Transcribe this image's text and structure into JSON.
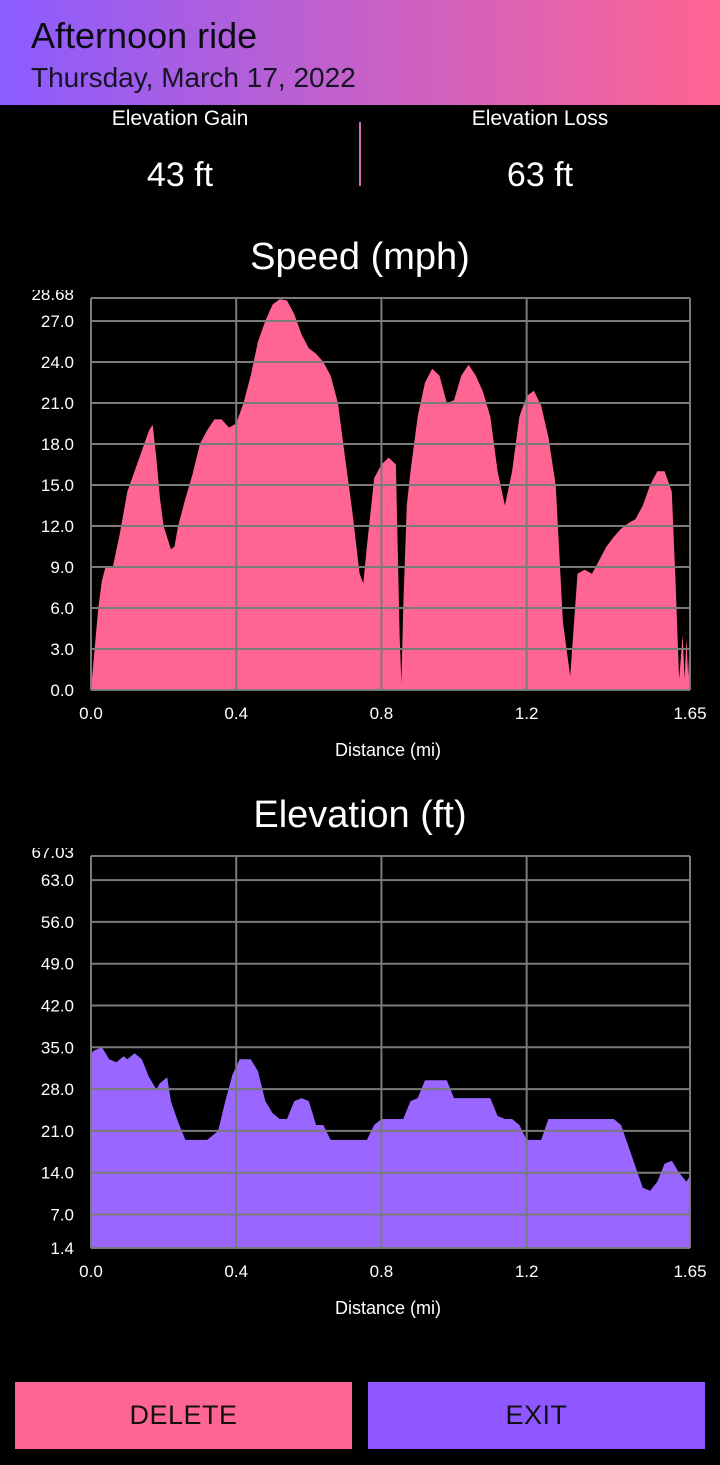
{
  "header": {
    "title": "Afternoon ride",
    "date": "Thursday, March 17, 2022"
  },
  "stats": {
    "gain_label": "Elevation Gain",
    "gain_value": "43 ft",
    "loss_label": "Elevation Loss",
    "loss_value": "63 ft"
  },
  "buttons": {
    "delete_label": "DELETE",
    "exit_label": "EXIT"
  },
  "colors": {
    "speed_fill": "#ff6592",
    "elevation_fill": "#9966ff",
    "grid": "#7a7a7a"
  },
  "chart_data": [
    {
      "type": "area",
      "title": "Speed (mph)",
      "xlabel": "Distance (mi)",
      "ylabel": "",
      "xlim": [
        0.0,
        1.65
      ],
      "ylim": [
        0.0,
        28.68
      ],
      "x_ticks": [
        "0.0",
        "0.4",
        "0.8",
        "1.2",
        "1.65"
      ],
      "y_ticks": [
        "0.0",
        "3.0",
        "6.0",
        "9.0",
        "12.0",
        "15.0",
        "18.0",
        "21.0",
        "24.0",
        "27.0",
        "28.68"
      ],
      "grid": true,
      "series": [
        {
          "x": [
            0.0,
            0.01,
            0.02,
            0.03,
            0.04,
            0.06,
            0.08,
            0.1,
            0.12,
            0.14,
            0.16,
            0.17,
            0.18,
            0.19,
            0.2,
            0.22,
            0.23,
            0.24,
            0.26,
            0.28,
            0.3,
            0.32,
            0.34,
            0.36,
            0.38,
            0.4,
            0.42,
            0.44,
            0.46,
            0.48,
            0.5,
            0.52,
            0.54,
            0.56,
            0.58,
            0.6,
            0.62,
            0.64,
            0.66,
            0.68,
            0.7,
            0.72,
            0.74,
            0.75,
            0.76,
            0.78,
            0.8,
            0.82,
            0.84,
            0.85,
            0.855,
            0.86,
            0.87,
            0.88,
            0.9,
            0.92,
            0.94,
            0.96,
            0.98,
            1.0,
            1.02,
            1.04,
            1.06,
            1.08,
            1.1,
            1.12,
            1.14,
            1.16,
            1.18,
            1.2,
            1.22,
            1.24,
            1.26,
            1.28,
            1.3,
            1.32,
            1.34,
            1.36,
            1.38,
            1.4,
            1.42,
            1.44,
            1.46,
            1.48,
            1.5,
            1.52,
            1.54,
            1.56,
            1.58,
            1.6,
            1.61,
            1.62,
            1.63,
            1.635,
            1.64,
            1.645,
            1.65
          ],
          "y": [
            0.0,
            3.0,
            6.0,
            8.0,
            9.0,
            9.0,
            11.5,
            14.5,
            16.0,
            17.5,
            19.0,
            19.4,
            17.0,
            14.0,
            12.0,
            10.3,
            10.5,
            12.0,
            14.0,
            15.8,
            18.0,
            19.0,
            19.8,
            19.8,
            19.2,
            19.5,
            21.0,
            23.0,
            25.5,
            27.0,
            28.2,
            28.6,
            28.5,
            27.5,
            26.0,
            25.0,
            24.6,
            24.0,
            23.0,
            21.0,
            17.0,
            13.0,
            8.5,
            7.8,
            10.5,
            15.5,
            16.5,
            17.0,
            16.5,
            4.0,
            0.5,
            6.0,
            13.5,
            16.0,
            20.0,
            22.5,
            23.5,
            23.0,
            21.0,
            21.2,
            23.0,
            23.8,
            23.0,
            21.8,
            20.0,
            16.0,
            13.5,
            16.0,
            20.0,
            21.5,
            21.9,
            20.8,
            18.5,
            15.0,
            5.0,
            1.0,
            8.5,
            8.8,
            8.5,
            9.5,
            10.5,
            11.2,
            11.8,
            12.2,
            12.5,
            13.5,
            15.0,
            16.0,
            16.0,
            14.5,
            8.0,
            0.8,
            4.0,
            0.8,
            3.8,
            1.0,
            4.3
          ]
        }
      ]
    },
    {
      "type": "area",
      "title": "Elevation (ft)",
      "xlabel": "Distance (mi)",
      "ylabel": "",
      "xlim": [
        0.0,
        1.65
      ],
      "ylim": [
        1.4,
        67.03
      ],
      "x_ticks": [
        "0.0",
        "0.4",
        "0.8",
        "1.2",
        "1.65"
      ],
      "y_ticks": [
        "1.4",
        "7.0",
        "14.0",
        "21.0",
        "28.0",
        "35.0",
        "42.0",
        "49.0",
        "56.0",
        "63.0",
        "67.03"
      ],
      "grid": true,
      "series": [
        {
          "x": [
            0.0,
            0.01,
            0.03,
            0.05,
            0.07,
            0.09,
            0.1,
            0.12,
            0.14,
            0.16,
            0.18,
            0.19,
            0.21,
            0.22,
            0.24,
            0.26,
            0.28,
            0.3,
            0.32,
            0.35,
            0.37,
            0.39,
            0.41,
            0.42,
            0.44,
            0.46,
            0.48,
            0.5,
            0.52,
            0.54,
            0.56,
            0.58,
            0.6,
            0.62,
            0.64,
            0.66,
            0.68,
            0.7,
            0.72,
            0.74,
            0.76,
            0.78,
            0.8,
            0.82,
            0.84,
            0.86,
            0.88,
            0.9,
            0.92,
            0.94,
            0.96,
            0.98,
            1.0,
            1.02,
            1.04,
            1.06,
            1.08,
            1.1,
            1.12,
            1.14,
            1.16,
            1.18,
            1.2,
            1.22,
            1.24,
            1.26,
            1.28,
            1.3,
            1.32,
            1.34,
            1.36,
            1.38,
            1.4,
            1.42,
            1.44,
            1.46,
            1.48,
            1.5,
            1.52,
            1.54,
            1.56,
            1.58,
            1.6,
            1.62,
            1.64,
            1.65
          ],
          "y": [
            34.0,
            34.5,
            35.0,
            33.0,
            32.5,
            33.5,
            33.0,
            34.0,
            33.0,
            30.0,
            28.0,
            29.0,
            30.0,
            26.0,
            22.5,
            19.5,
            19.5,
            19.5,
            19.5,
            21.0,
            26.0,
            30.5,
            33.0,
            33.0,
            33.0,
            31.0,
            26.0,
            24.0,
            23.0,
            23.0,
            26.0,
            26.5,
            26.0,
            22.0,
            22.0,
            19.5,
            19.5,
            19.5,
            19.5,
            19.5,
            19.5,
            22.0,
            23.0,
            23.0,
            23.0,
            23.0,
            26.0,
            26.5,
            29.5,
            29.5,
            29.5,
            29.5,
            26.5,
            26.5,
            26.5,
            26.5,
            26.5,
            26.5,
            23.5,
            23.0,
            23.0,
            22.0,
            19.5,
            19.5,
            19.5,
            23.0,
            23.0,
            23.0,
            23.0,
            23.0,
            23.0,
            23.0,
            23.0,
            23.0,
            23.0,
            22.0,
            18.5,
            15.0,
            11.5,
            11.0,
            12.5,
            15.5,
            16.0,
            14.0,
            12.5,
            13.5
          ]
        }
      ]
    }
  ]
}
